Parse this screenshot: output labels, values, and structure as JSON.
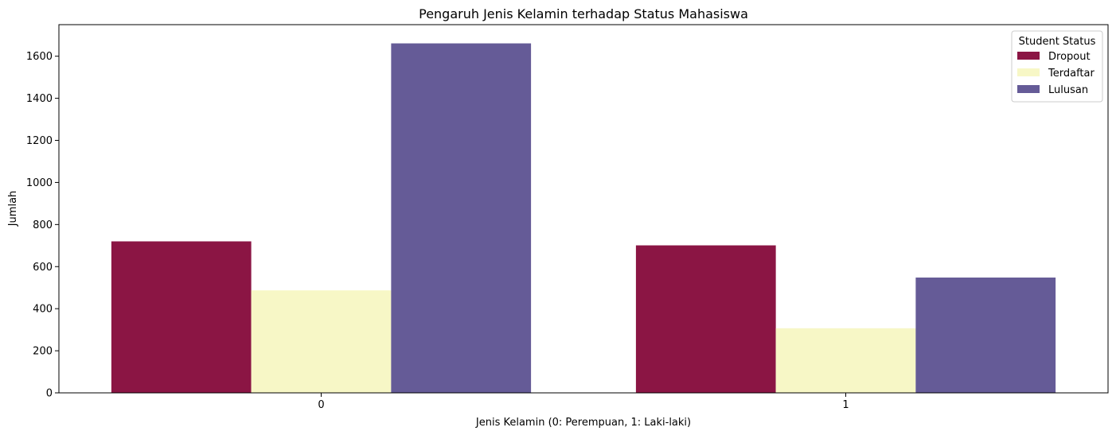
{
  "chart_data": {
    "type": "bar",
    "title": "Pengaruh Jenis Kelamin terhadap Status Mahasiswa",
    "xlabel": "Jenis Kelamin (0: Perempuan, 1: Laki-laki)",
    "ylabel": "Jumlah",
    "categories": [
      "0",
      "1"
    ],
    "ylim": [
      0,
      1750
    ],
    "yticks": [
      0,
      200,
      400,
      600,
      800,
      1000,
      1200,
      1400,
      1600
    ],
    "grid": false,
    "legend": {
      "title": "Student Status",
      "placement": "top-right"
    },
    "series": [
      {
        "name": "Dropout",
        "values": [
          720,
          701
        ],
        "color": "#8b1544"
      },
      {
        "name": "Terdaftar",
        "values": [
          487,
          307
        ],
        "color": "#f7f7c6"
      },
      {
        "name": "Lulusan",
        "values": [
          1661,
          548
        ],
        "color": "#655b97"
      }
    ]
  }
}
